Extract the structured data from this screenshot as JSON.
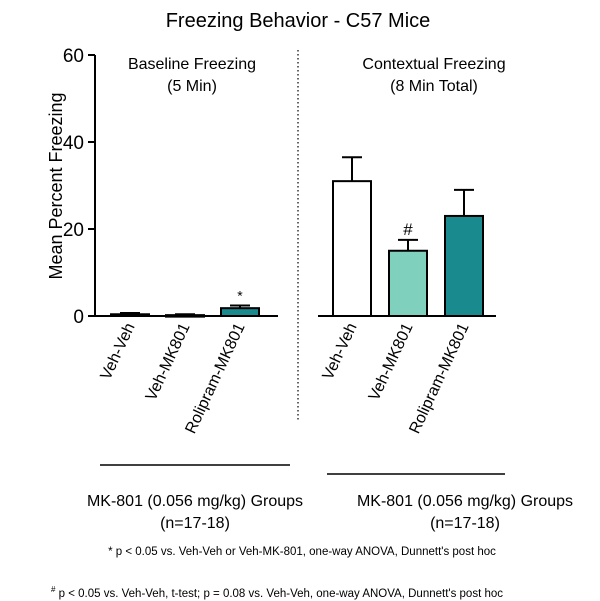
{
  "chart_data": {
    "type": "bar",
    "title": "Freezing Behavior - C57 Mice",
    "ylabel": "Mean Percent Freezing",
    "ylim": [
      0,
      60
    ],
    "yticks": [
      "0",
      "20",
      "40",
      "60"
    ],
    "grid": false,
    "panels": [
      {
        "title_line1": "Baseline Freezing",
        "title_line2": "(5 Min)",
        "categories": [
          "Veh-Veh",
          "Veh-MK801",
          "Rolipram-MK801"
        ],
        "values": [
          0.4,
          0.2,
          1.8
        ],
        "errors": [
          0.3,
          0.2,
          0.6
        ],
        "markers": [
          "",
          "",
          "*"
        ],
        "colors": [
          "#ffffff",
          "#ffffff",
          "#198a8e"
        ],
        "group_label": "MK-801 (0.056 mg/kg) Groups",
        "group_n": "(n=17-18)"
      },
      {
        "title_line1": "Contextual Freezing",
        "title_line2": "(8 Min Total)",
        "categories": [
          "Veh-Veh",
          "Veh-MK801",
          "Rolipram-MK801"
        ],
        "values": [
          31,
          15,
          23
        ],
        "errors": [
          5.5,
          2.5,
          6
        ],
        "markers": [
          "",
          "#",
          ""
        ],
        "colors": [
          "#ffffff",
          "#7fd1bd",
          "#198a8e"
        ],
        "group_label": "MK-801 (0.056 mg/kg) Groups",
        "group_n": "(n=17-18)"
      }
    ],
    "footnotes": {
      "star": "* p < 0.05 vs. Veh-Veh or Veh-MK-801, one-way ANOVA, Dunnett's post hoc",
      "hash_symbol": "#",
      "hash_text": " p < 0.05 vs. Veh-Veh, t-test;  p = 0.08 vs. Veh-Veh, one-way ANOVA, Dunnett's post hoc"
    }
  }
}
